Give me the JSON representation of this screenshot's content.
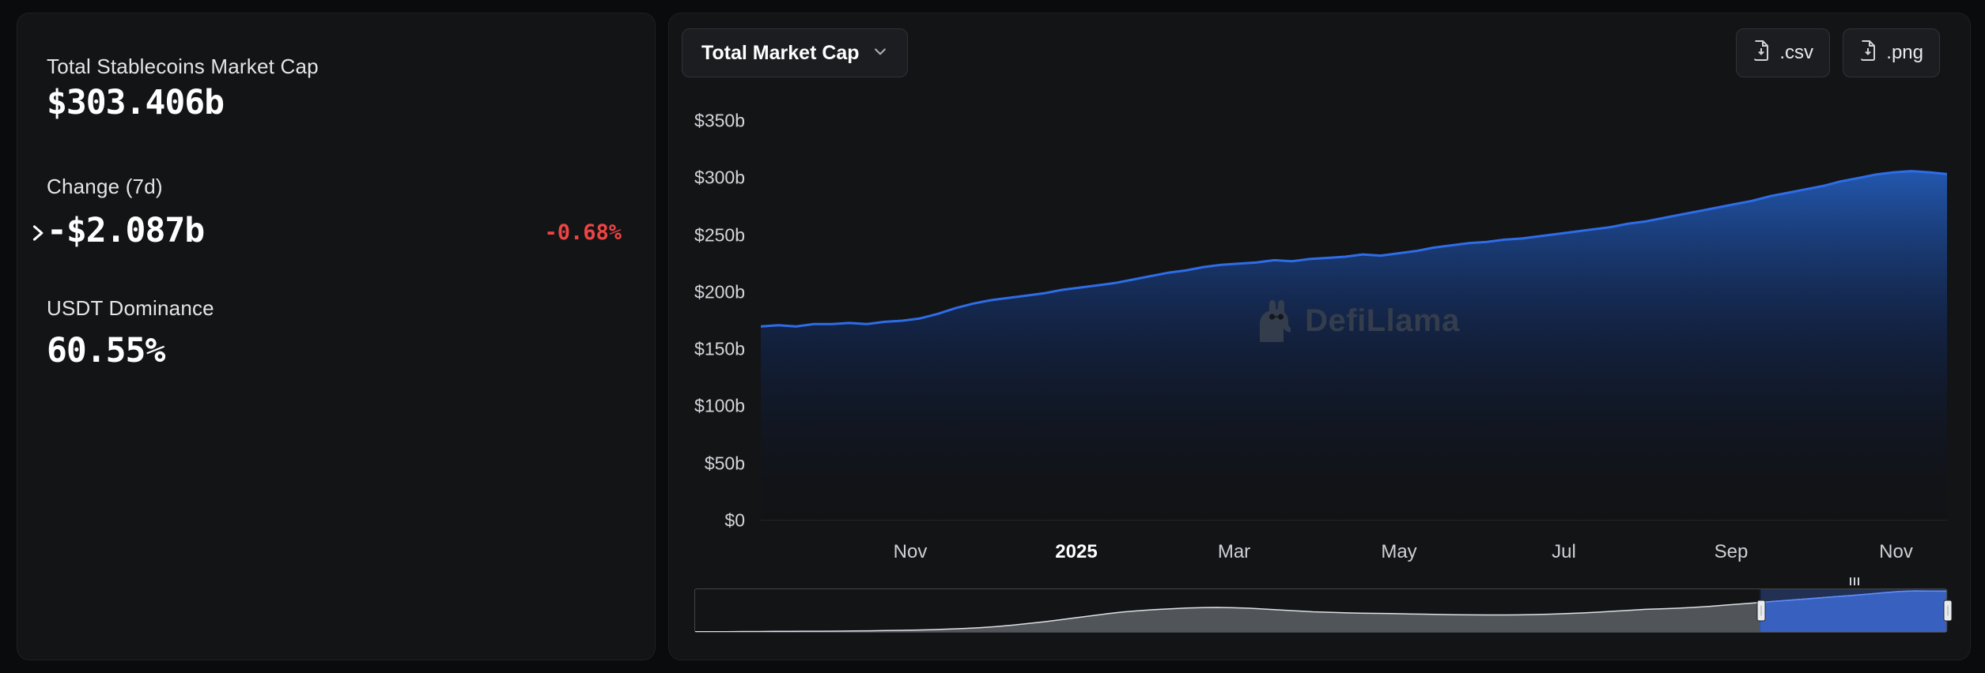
{
  "colors": {
    "background": "#0a0b0c",
    "card": "#131416",
    "accent_line": "#2e6de8",
    "area_fill_top": "#2563c9",
    "negative": "#ef4444",
    "watermark": "#3a424e"
  },
  "stats": {
    "market_cap": {
      "label": "Total Stablecoins Market Cap",
      "value": "$303.406b"
    },
    "change": {
      "label": "Change (7d)",
      "value": "-$2.087b",
      "pct": "-0.68%"
    },
    "dominance": {
      "label": "USDT Dominance",
      "value": "60.55%"
    }
  },
  "toolbar": {
    "metric_selector": {
      "label": "Total Market Cap"
    },
    "export_csv_label": ".csv",
    "export_png_label": ".png"
  },
  "watermark": {
    "text": "DefiLlama"
  },
  "chart_data": {
    "type": "area",
    "title": "Total Stablecoins Market Cap",
    "unit": "USD billions",
    "ylim": [
      0,
      350
    ],
    "grid": false,
    "legend": "none",
    "y_ticks": [
      {
        "label": "$350b",
        "value": 350
      },
      {
        "label": "$300b",
        "value": 300
      },
      {
        "label": "$250b",
        "value": 250
      },
      {
        "label": "$200b",
        "value": 200
      },
      {
        "label": "$150b",
        "value": 150
      },
      {
        "label": "$100b",
        "value": 100
      },
      {
        "label": "$50b",
        "value": 50
      },
      {
        "label": "$0",
        "value": 0
      }
    ],
    "x_ticks": [
      {
        "label": "Nov",
        "pos": 0.126
      },
      {
        "label": "2025",
        "pos": 0.266,
        "emphasis": true
      },
      {
        "label": "Mar",
        "pos": 0.399
      },
      {
        "label": "May",
        "pos": 0.538
      },
      {
        "label": "Jul",
        "pos": 0.677
      },
      {
        "label": "Sep",
        "pos": 0.818
      },
      {
        "label": "Nov",
        "pos": 0.957
      }
    ],
    "series": [
      {
        "name": "Total Market Cap ($b)",
        "values": [
          170,
          171,
          170,
          172,
          172,
          173,
          172,
          174,
          175,
          177,
          181,
          186,
          190,
          193,
          195,
          197,
          199,
          202,
          204,
          206,
          208,
          211,
          214,
          217,
          219,
          222,
          224,
          225,
          226,
          228,
          227,
          229,
          230,
          231,
          233,
          232,
          234,
          236,
          239,
          241,
          243,
          244,
          246,
          247,
          249,
          251,
          253,
          255,
          257,
          260,
          262,
          265,
          268,
          271,
          274,
          277,
          280,
          284,
          287,
          290,
          293,
          297,
          300,
          303,
          305,
          306,
          305,
          303.4
        ]
      }
    ],
    "brush": {
      "values": [
        2,
        2,
        2,
        3,
        3,
        4,
        4,
        5,
        5,
        6,
        7,
        8,
        10,
        12,
        14,
        17,
        21,
        26,
        32,
        40,
        50,
        62,
        75,
        90,
        105,
        120,
        135,
        148,
        158,
        166,
        172,
        178,
        181,
        182,
        180,
        176,
        170,
        163,
        156,
        150,
        146,
        143,
        140,
        138,
        136,
        134,
        132,
        130,
        128,
        127,
        126,
        126,
        127,
        129,
        132,
        136,
        141,
        147,
        154,
        161,
        168,
        172,
        176,
        182,
        190,
        199,
        208,
        217,
        226,
        235,
        244,
        253,
        262,
        271,
        281,
        291,
        300,
        305,
        304,
        303
      ],
      "selection": [
        0.851,
        1.0
      ]
    }
  }
}
